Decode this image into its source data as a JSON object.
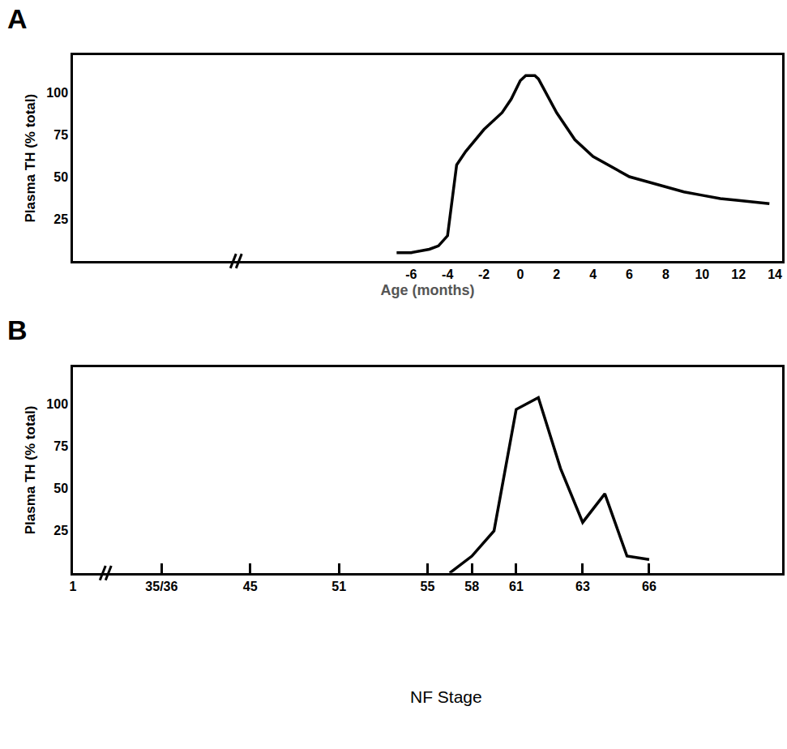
{
  "chart_data": [
    {
      "type": "line",
      "title": "A",
      "xlabel": "Age (months)",
      "ylabel": "Plasma TH (% total)",
      "x": [
        -6.8,
        -6,
        -5,
        -4.5,
        -4,
        -3.5,
        -3,
        -2,
        -1,
        -0.5,
        0,
        0.3,
        0.8,
        1,
        2,
        3,
        4,
        5,
        6,
        7,
        8,
        9,
        10,
        11,
        12,
        13,
        13.7
      ],
      "values": [
        5,
        5,
        7,
        9,
        15,
        57,
        65,
        78,
        88,
        96,
        107,
        110,
        110,
        108,
        88,
        72,
        62,
        56,
        50,
        47,
        44,
        41,
        39,
        37,
        36,
        35,
        34
      ],
      "color": "#000000",
      "xlim": [
        -24.6,
        14.4
      ],
      "xticks": [
        -6,
        -4,
        -2,
        0,
        2,
        4,
        6,
        8,
        10,
        12,
        14
      ],
      "ylim": [
        0,
        122
      ],
      "yticks": [
        25,
        50,
        75,
        100
      ]
    },
    {
      "type": "line",
      "title": "B",
      "xlabel": "NF Stage",
      "ylabel": "Plasma TH (% total)",
      "categories": [
        "1",
        null,
        null,
        null,
        "35/36",
        null,
        null,
        null,
        "45",
        null,
        null,
        null,
        "51",
        null,
        null,
        null,
        "55",
        null,
        "58",
        null,
        "61",
        null,
        null,
        "63",
        null,
        null,
        "66",
        null,
        null,
        null,
        null,
        null,
        null
      ],
      "values": [
        null,
        null,
        null,
        null,
        null,
        null,
        null,
        null,
        null,
        null,
        null,
        null,
        null,
        null,
        null,
        null,
        null,
        0,
        10,
        25,
        97,
        104,
        62,
        30,
        47,
        10,
        8,
        null,
        null,
        null,
        null,
        null,
        null
      ],
      "color": "#000000",
      "ylim": [
        0,
        122
      ],
      "yticks": [
        25,
        50,
        75,
        100
      ]
    }
  ]
}
